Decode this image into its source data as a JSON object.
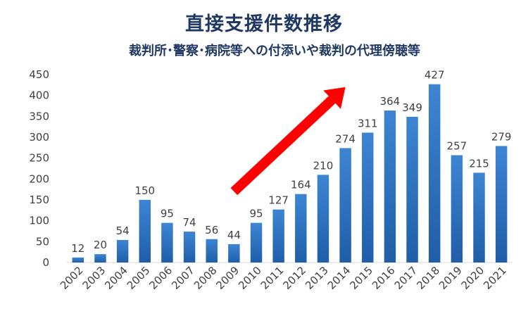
{
  "chart_data": {
    "type": "bar",
    "title": "直接支援件数推移",
    "subtitle": "裁判所･警察･病院等への付添いや裁判の代理傍聴等",
    "categories": [
      "2002",
      "2003",
      "2004",
      "2005",
      "2006",
      "2007",
      "2008",
      "2009",
      "2010",
      "2011",
      "2012",
      "2013",
      "2014",
      "2015",
      "2016",
      "2017",
      "2018",
      "2019",
      "2020",
      "2021"
    ],
    "values": [
      12,
      20,
      54,
      150,
      95,
      74,
      56,
      44,
      95,
      127,
      164,
      210,
      274,
      311,
      364,
      349,
      427,
      257,
      215,
      279
    ],
    "ylim": [
      0,
      450
    ],
    "yticks": [
      0,
      50,
      100,
      150,
      200,
      250,
      300,
      350,
      400,
      450
    ],
    "grid": false,
    "bar_color": "#3d85d3",
    "bar_color_dark": "#1f5ea8",
    "arrow_color": "#ff0000",
    "annotation": {
      "type": "arrow",
      "from": {
        "x": "2009",
        "y": 170
      },
      "to": {
        "x": "2014",
        "y": 420
      }
    }
  }
}
